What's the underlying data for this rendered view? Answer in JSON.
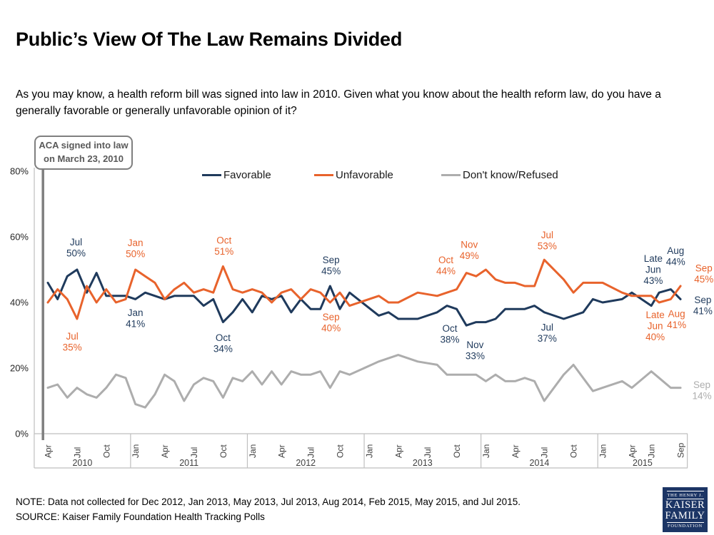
{
  "header": {
    "title": "Public’s View Of The Law Remains Divided",
    "question": "As you may know, a health reform bill was signed into law in 2010. Given what you know about the health reform law, do you have a generally favorable or generally unfavorable opinion of it?"
  },
  "annotation_box": {
    "line1": "ACA signed into law",
    "line2": "on March 23, 2010"
  },
  "legend": [
    {
      "label": "Favorable",
      "color": "#1F3A5C"
    },
    {
      "label": "Unfavorable",
      "color": "#E8632C"
    },
    {
      "label": "Don't know/Refused",
      "color": "#ADADAD"
    }
  ],
  "footer": {
    "note": "NOTE: Data not collected for Dec 2012, Jan 2013, May 2013, Jul 2013, Aug 2014, Feb 2015, May 2015, and Jul 2015.",
    "source": "SOURCE: Kaiser Family Foundation Health Tracking Polls"
  },
  "logo": {
    "line1": "THE HENRY J.",
    "line2": "KAISER",
    "line3": "FAMILY",
    "line4": "FOUNDATION"
  },
  "chart_data": {
    "type": "line",
    "title": "Public’s View Of The Law Remains Divided",
    "x_unit": "months since Apr 2010 (time axis Apr 2010 - Sep 2015)",
    "y_unit": "%",
    "ylim": [
      0,
      80
    ],
    "yticks": [
      0,
      20,
      40,
      60,
      80
    ],
    "grid": false,
    "legend_position": "top",
    "aca_line_m": -0.5,
    "series": [
      {
        "name": "Favorable",
        "color": "#1F3A5C",
        "points": [
          [
            0,
            46
          ],
          [
            1,
            41
          ],
          [
            2,
            48
          ],
          [
            3,
            50
          ],
          [
            4,
            43
          ],
          [
            5,
            49
          ],
          [
            6,
            42
          ],
          [
            7,
            42
          ],
          [
            8,
            42
          ],
          [
            9,
            41
          ],
          [
            10,
            43
          ],
          [
            11,
            42
          ],
          [
            12,
            41
          ],
          [
            13,
            42
          ],
          [
            14,
            42
          ],
          [
            15,
            42
          ],
          [
            16,
            39
          ],
          [
            17,
            41
          ],
          [
            18,
            34
          ],
          [
            19,
            37
          ],
          [
            20,
            41
          ],
          [
            21,
            37
          ],
          [
            22,
            42
          ],
          [
            23,
            41
          ],
          [
            24,
            42
          ],
          [
            25,
            37
          ],
          [
            26,
            41
          ],
          [
            27,
            38
          ],
          [
            28,
            38
          ],
          [
            29,
            45
          ],
          [
            30,
            38
          ],
          [
            31,
            43
          ],
          [
            34,
            36
          ],
          [
            35,
            37
          ],
          [
            36,
            35
          ],
          [
            38,
            35
          ],
          [
            40,
            37
          ],
          [
            41,
            39
          ],
          [
            42,
            38
          ],
          [
            43,
            33
          ],
          [
            44,
            34
          ],
          [
            45,
            34
          ],
          [
            46,
            35
          ],
          [
            47,
            38
          ],
          [
            48,
            38
          ],
          [
            49,
            38
          ],
          [
            50,
            39
          ],
          [
            51,
            37
          ],
          [
            53,
            35
          ],
          [
            54,
            36
          ],
          [
            55,
            37
          ],
          [
            56,
            41
          ],
          [
            57,
            40
          ],
          [
            59,
            41
          ],
          [
            60,
            43
          ],
          [
            62,
            39
          ],
          [
            62.8,
            43
          ],
          [
            64,
            44
          ],
          [
            65,
            41
          ]
        ]
      },
      {
        "name": "Unfavorable",
        "color": "#E8632C",
        "points": [
          [
            0,
            40
          ],
          [
            1,
            44
          ],
          [
            2,
            41
          ],
          [
            3,
            35
          ],
          [
            4,
            45
          ],
          [
            5,
            40
          ],
          [
            6,
            44
          ],
          [
            7,
            40
          ],
          [
            8,
            41
          ],
          [
            9,
            50
          ],
          [
            10,
            48
          ],
          [
            11,
            46
          ],
          [
            12,
            41
          ],
          [
            13,
            44
          ],
          [
            14,
            46
          ],
          [
            15,
            43
          ],
          [
            16,
            44
          ],
          [
            17,
            43
          ],
          [
            18,
            51
          ],
          [
            19,
            44
          ],
          [
            20,
            43
          ],
          [
            21,
            44
          ],
          [
            22,
            43
          ],
          [
            23,
            40
          ],
          [
            24,
            43
          ],
          [
            25,
            44
          ],
          [
            26,
            41
          ],
          [
            27,
            44
          ],
          [
            28,
            43
          ],
          [
            29,
            40
          ],
          [
            30,
            43
          ],
          [
            31,
            39
          ],
          [
            34,
            42
          ],
          [
            35,
            40
          ],
          [
            36,
            40
          ],
          [
            38,
            43
          ],
          [
            40,
            42
          ],
          [
            41,
            43
          ],
          [
            42,
            44
          ],
          [
            43,
            49
          ],
          [
            44,
            48
          ],
          [
            45,
            50
          ],
          [
            46,
            47
          ],
          [
            47,
            46
          ],
          [
            48,
            46
          ],
          [
            49,
            45
          ],
          [
            50,
            45
          ],
          [
            51,
            53
          ],
          [
            53,
            47
          ],
          [
            54,
            43
          ],
          [
            55,
            46
          ],
          [
            56,
            46
          ],
          [
            57,
            46
          ],
          [
            59,
            43
          ],
          [
            60,
            42
          ],
          [
            62,
            42
          ],
          [
            62.8,
            40
          ],
          [
            64,
            41
          ],
          [
            65,
            45
          ]
        ]
      },
      {
        "name": "Don't know/Refused",
        "color": "#ADADAD",
        "points": [
          [
            0,
            14
          ],
          [
            1,
            15
          ],
          [
            2,
            11
          ],
          [
            3,
            14
          ],
          [
            4,
            12
          ],
          [
            5,
            11
          ],
          [
            6,
            14
          ],
          [
            7,
            18
          ],
          [
            8,
            17
          ],
          [
            9,
            9
          ],
          [
            10,
            8
          ],
          [
            11,
            12
          ],
          [
            12,
            18
          ],
          [
            13,
            16
          ],
          [
            14,
            10
          ],
          [
            15,
            15
          ],
          [
            16,
            17
          ],
          [
            17,
            16
          ],
          [
            18,
            11
          ],
          [
            19,
            17
          ],
          [
            20,
            16
          ],
          [
            21,
            19
          ],
          [
            22,
            15
          ],
          [
            23,
            19
          ],
          [
            24,
            15
          ],
          [
            25,
            19
          ],
          [
            26,
            18
          ],
          [
            27,
            18
          ],
          [
            28,
            19
          ],
          [
            29,
            14
          ],
          [
            30,
            19
          ],
          [
            31,
            18
          ],
          [
            34,
            22
          ],
          [
            35,
            23
          ],
          [
            36,
            24
          ],
          [
            38,
            22
          ],
          [
            40,
            21
          ],
          [
            41,
            18
          ],
          [
            42,
            18
          ],
          [
            43,
            18
          ],
          [
            44,
            18
          ],
          [
            45,
            16
          ],
          [
            46,
            18
          ],
          [
            47,
            16
          ],
          [
            48,
            16
          ],
          [
            49,
            17
          ],
          [
            50,
            16
          ],
          [
            51,
            10
          ],
          [
            53,
            18
          ],
          [
            54,
            21
          ],
          [
            55,
            17
          ],
          [
            56,
            13
          ],
          [
            57,
            14
          ],
          [
            59,
            16
          ],
          [
            60,
            14
          ],
          [
            62,
            19
          ],
          [
            62.8,
            17
          ],
          [
            64,
            14
          ],
          [
            65,
            14
          ]
        ]
      }
    ],
    "month_ticks": [
      {
        "m": 0,
        "label": "Apr"
      },
      {
        "m": 3,
        "label": "Jul"
      },
      {
        "m": 6,
        "label": "Oct"
      },
      {
        "m": 9,
        "label": "Jan"
      },
      {
        "m": 12,
        "label": "Apr"
      },
      {
        "m": 15,
        "label": "Jul"
      },
      {
        "m": 18,
        "label": "Oct"
      },
      {
        "m": 21,
        "label": "Jan"
      },
      {
        "m": 24,
        "label": "Apr"
      },
      {
        "m": 27,
        "label": "Jul"
      },
      {
        "m": 30,
        "label": "Oct"
      },
      {
        "m": 33,
        "label": "Jan"
      },
      {
        "m": 36,
        "label": "Apr"
      },
      {
        "m": 39,
        "label": "Jul"
      },
      {
        "m": 42,
        "label": "Oct"
      },
      {
        "m": 45,
        "label": "Jan"
      },
      {
        "m": 48,
        "label": "Apr"
      },
      {
        "m": 51,
        "label": "Jul"
      },
      {
        "m": 54,
        "label": "Oct"
      },
      {
        "m": 57,
        "label": "Jan"
      },
      {
        "m": 60,
        "label": "Apr"
      },
      {
        "m": 62,
        "label": "Jun"
      },
      {
        "m": 65,
        "label": "Sep"
      }
    ],
    "year_bands": [
      {
        "label": "2010",
        "from_m": -1.4,
        "to_m": 8.5
      },
      {
        "label": "2011",
        "from_m": 8.5,
        "to_m": 20.5
      },
      {
        "label": "2012",
        "from_m": 20.5,
        "to_m": 32.5
      },
      {
        "label": "2013",
        "from_m": 32.5,
        "to_m": 44.5
      },
      {
        "label": "2014",
        "from_m": 44.5,
        "to_m": 56.5
      },
      {
        "label": "2015",
        "from_m": 56.5,
        "to_m": 65.7
      }
    ],
    "point_labels": [
      {
        "s": 0,
        "m": 2.9,
        "pct": 56.7,
        "lines": [
          "Jul",
          "50%"
        ]
      },
      {
        "s": 0,
        "m": 9,
        "pct": 35.2,
        "lines": [
          "Jan",
          "41%"
        ]
      },
      {
        "s": 0,
        "m": 18,
        "pct": 27.6,
        "lines": [
          "Oct",
          "34%"
        ]
      },
      {
        "s": 0,
        "m": 29.1,
        "pct": 51.3,
        "lines": [
          "Sep",
          "45%"
        ]
      },
      {
        "s": 0,
        "m": 41.3,
        "pct": 30.4,
        "lines": [
          "Oct",
          "38%"
        ]
      },
      {
        "s": 0,
        "m": 43.9,
        "pct": 25.4,
        "lines": [
          "Nov",
          "33%"
        ]
      },
      {
        "s": 0,
        "m": 51.3,
        "pct": 30.7,
        "lines": [
          "Jul",
          "37%"
        ]
      },
      {
        "s": 0,
        "m": 62.2,
        "pct": 50,
        "lines": [
          "Late",
          "Jun",
          "43%"
        ]
      },
      {
        "s": 0,
        "m": 64.5,
        "pct": 54.1,
        "lines": [
          "Aug",
          "44%"
        ]
      },
      {
        "s": 0,
        "m": 67.3,
        "pct": 39.1,
        "lines": [
          "Sep",
          "41%"
        ]
      },
      {
        "s": 1,
        "m": 2.5,
        "pct": 28,
        "lines": [
          "Jul",
          "35%"
        ]
      },
      {
        "s": 1,
        "m": 9,
        "pct": 56.5,
        "lines": [
          "Jan",
          "50%"
        ]
      },
      {
        "s": 1,
        "m": 18.1,
        "pct": 57.2,
        "lines": [
          "Oct",
          "51%"
        ]
      },
      {
        "s": 1,
        "m": 29.1,
        "pct": 33.9,
        "lines": [
          "Sep",
          "40%"
        ]
      },
      {
        "s": 1,
        "m": 40.9,
        "pct": 51.3,
        "lines": [
          "Oct",
          "44%"
        ]
      },
      {
        "s": 1,
        "m": 43.3,
        "pct": 55.9,
        "lines": [
          "Nov",
          "49%"
        ]
      },
      {
        "s": 1,
        "m": 51.3,
        "pct": 58.9,
        "lines": [
          "Jul",
          "53%"
        ]
      },
      {
        "s": 1,
        "m": 62.4,
        "pct": 32.8,
        "lines": [
          "Late",
          "Jun",
          "40%"
        ]
      },
      {
        "s": 1,
        "m": 64.6,
        "pct": 34.8,
        "lines": [
          "Aug",
          "41%"
        ]
      },
      {
        "s": 1,
        "m": 67.4,
        "pct": 48.7,
        "lines": [
          "Sep",
          "45%"
        ]
      },
      {
        "s": 2,
        "m": 67.2,
        "pct": 13.2,
        "lines": [
          "Sep",
          "14%"
        ]
      }
    ]
  }
}
